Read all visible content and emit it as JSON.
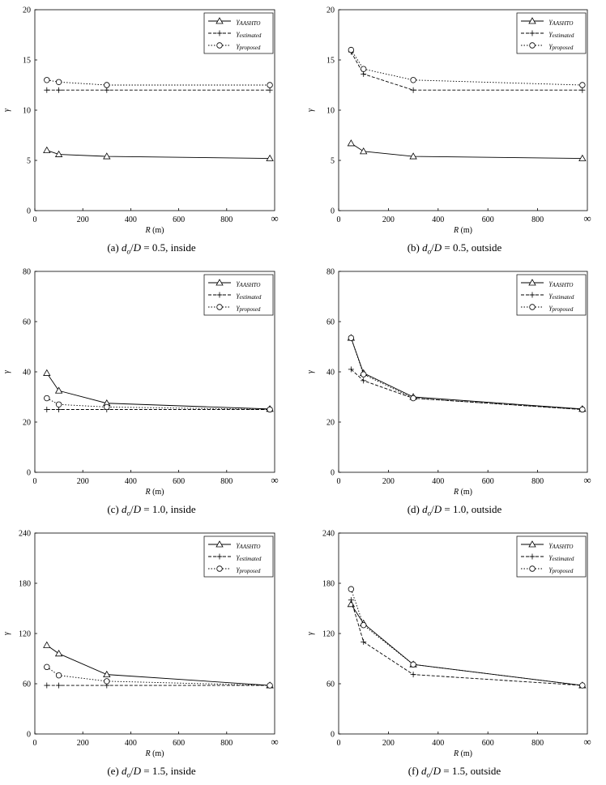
{
  "figure": {
    "xlabel_var": "R",
    "xlabel_unit": "(m)",
    "ylabel": "γ",
    "legend_symbol": "γ",
    "legend_subscripts": [
      "AASHTO",
      "estimated",
      "proposed"
    ],
    "infinity_label": "∞",
    "x_ticks": [
      "0",
      "200",
      "400",
      "600",
      "800"
    ]
  },
  "chart_data": [
    {
      "type": "line",
      "caption": {
        "letter": "(a)",
        "value": "0.5",
        "side": "inside"
      },
      "x": [
        50,
        100,
        300,
        "∞"
      ],
      "x_positions": [
        50,
        100,
        300,
        980
      ],
      "ylim": [
        0,
        20
      ],
      "yticks": [
        0,
        5,
        10,
        15,
        20
      ],
      "series": [
        {
          "name": "γAASHTO",
          "values": [
            6.0,
            5.6,
            5.4,
            5.2
          ]
        },
        {
          "name": "γestimated",
          "values": [
            12.0,
            12.0,
            12.0,
            12.0
          ]
        },
        {
          "name": "γproposed",
          "values": [
            13.0,
            12.8,
            12.5,
            12.5
          ]
        }
      ]
    },
    {
      "type": "line",
      "caption": {
        "letter": "(b)",
        "value": "0.5",
        "side": "outside"
      },
      "x": [
        50,
        100,
        300,
        "∞"
      ],
      "x_positions": [
        50,
        100,
        300,
        980
      ],
      "ylim": [
        0,
        20
      ],
      "yticks": [
        0,
        5,
        10,
        15,
        20
      ],
      "series": [
        {
          "name": "γAASHTO",
          "values": [
            6.7,
            5.9,
            5.4,
            5.2
          ]
        },
        {
          "name": "γestimated",
          "values": [
            15.8,
            13.6,
            12.0,
            12.0
          ]
        },
        {
          "name": "γproposed",
          "values": [
            16.0,
            14.1,
            13.0,
            12.5
          ]
        }
      ]
    },
    {
      "type": "line",
      "caption": {
        "letter": "(c)",
        "value": "1.0",
        "side": "inside"
      },
      "x": [
        50,
        100,
        300,
        "∞"
      ],
      "x_positions": [
        50,
        100,
        300,
        980
      ],
      "ylim": [
        0,
        80
      ],
      "yticks": [
        0,
        20,
        40,
        60,
        80
      ],
      "series": [
        {
          "name": "γAASHTO",
          "values": [
            39.5,
            32.5,
            27.5,
            25.2
          ]
        },
        {
          "name": "γestimated",
          "values": [
            25.0,
            25.0,
            25.0,
            25.0
          ]
        },
        {
          "name": "γproposed",
          "values": [
            29.5,
            27.0,
            26.0,
            25.0
          ]
        }
      ]
    },
    {
      "type": "line",
      "caption": {
        "letter": "(d)",
        "value": "1.0",
        "side": "outside"
      },
      "x": [
        50,
        100,
        300,
        "∞"
      ],
      "x_positions": [
        50,
        100,
        300,
        980
      ],
      "ylim": [
        0,
        80
      ],
      "yticks": [
        0,
        20,
        40,
        60,
        80
      ],
      "series": [
        {
          "name": "γAASHTO",
          "values": [
            53.5,
            39.5,
            30.0,
            25.2
          ]
        },
        {
          "name": "γestimated",
          "values": [
            41.0,
            36.5,
            29.5,
            25.0
          ]
        },
        {
          "name": "γproposed",
          "values": [
            53.5,
            39.0,
            29.5,
            25.0
          ]
        }
      ]
    },
    {
      "type": "line",
      "caption": {
        "letter": "(e)",
        "value": "1.5",
        "side": "inside"
      },
      "x": [
        50,
        100,
        300,
        "∞"
      ],
      "x_positions": [
        50,
        100,
        300,
        980
      ],
      "ylim": [
        0,
        240
      ],
      "yticks": [
        0,
        60,
        120,
        180,
        240
      ],
      "series": [
        {
          "name": "γAASHTO",
          "values": [
            106,
            96,
            71,
            58
          ]
        },
        {
          "name": "γestimated",
          "values": [
            58,
            58,
            58,
            58
          ]
        },
        {
          "name": "γproposed",
          "values": [
            80,
            70,
            63,
            58
          ]
        }
      ]
    },
    {
      "type": "line",
      "caption": {
        "letter": "(f)",
        "value": "1.5",
        "side": "outside"
      },
      "x": [
        50,
        100,
        300,
        "∞"
      ],
      "x_positions": [
        50,
        100,
        300,
        980
      ],
      "ylim": [
        0,
        240
      ],
      "yticks": [
        0,
        60,
        120,
        180,
        240
      ],
      "series": [
        {
          "name": "γAASHTO",
          "values": [
            155,
            132,
            83,
            58
          ]
        },
        {
          "name": "γestimated",
          "values": [
            160,
            110,
            71,
            58
          ]
        },
        {
          "name": "γproposed",
          "values": [
            173,
            130,
            83,
            58
          ]
        }
      ]
    }
  ]
}
